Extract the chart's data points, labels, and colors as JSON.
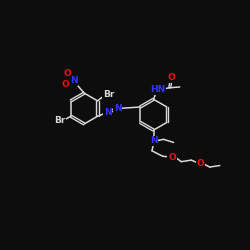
{
  "background_color": "#0d0d0d",
  "bond_color": "#d8d8d8",
  "atom_colors": {
    "N": "#3333ff",
    "O": "#ee1111",
    "Br": "#d8d8d8",
    "C": "#d8d8d8"
  },
  "font_size": 6.5
}
